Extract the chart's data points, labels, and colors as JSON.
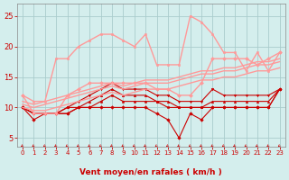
{
  "x": [
    0,
    1,
    2,
    3,
    4,
    5,
    6,
    7,
    8,
    9,
    10,
    11,
    12,
    13,
    14,
    15,
    16,
    17,
    18,
    19,
    20,
    21,
    22,
    23
  ],
  "series": [
    {
      "y": [
        10,
        8,
        9,
        9,
        9,
        10,
        10,
        10,
        10,
        10,
        10,
        10,
        9,
        8,
        5,
        9,
        8,
        10,
        10,
        10,
        10,
        10,
        10,
        13
      ],
      "color": "#cc0000",
      "marker": "D",
      "linewidth": 0.8,
      "markersize": 1.8,
      "linestyle": "-"
    },
    {
      "y": [
        10,
        9,
        9,
        9,
        9,
        10,
        10,
        11,
        12,
        11,
        11,
        11,
        11,
        10,
        10,
        10,
        10,
        10,
        10,
        10,
        10,
        10,
        10,
        13
      ],
      "color": "#cc0000",
      "marker": "s",
      "linewidth": 0.8,
      "markersize": 1.8,
      "linestyle": "-"
    },
    {
      "y": [
        10,
        9,
        9,
        9,
        10,
        10,
        11,
        12,
        13,
        12,
        12,
        12,
        11,
        11,
        10,
        10,
        10,
        11,
        11,
        11,
        11,
        11,
        11,
        13
      ],
      "color": "#cc0000",
      "marker": "^",
      "linewidth": 0.8,
      "markersize": 1.8,
      "linestyle": "-"
    },
    {
      "y": [
        10,
        9,
        9,
        9,
        10,
        11,
        12,
        13,
        14,
        13,
        13,
        13,
        12,
        12,
        11,
        11,
        11,
        13,
        12,
        12,
        12,
        12,
        12,
        13
      ],
      "color": "#cc0000",
      "marker": "v",
      "linewidth": 0.8,
      "markersize": 1.8,
      "linestyle": "-"
    },
    {
      "y": [
        10.0,
        9.5,
        9.5,
        10.0,
        10.5,
        11.0,
        11.5,
        12.0,
        12.5,
        12.0,
        12.5,
        13.0,
        13.0,
        13.0,
        13.5,
        14.0,
        14.5,
        14.5,
        15.0,
        15.0,
        15.5,
        16.0,
        16.0,
        16.5
      ],
      "color": "#ff9999",
      "marker": null,
      "linewidth": 1.0,
      "markersize": 0,
      "linestyle": "-"
    },
    {
      "y": [
        10.5,
        10.0,
        10.5,
        11.0,
        11.5,
        12.0,
        12.5,
        13.0,
        13.5,
        13.0,
        13.5,
        14.0,
        14.0,
        14.0,
        14.5,
        15.0,
        15.5,
        15.5,
        16.0,
        16.0,
        16.5,
        17.0,
        17.0,
        17.5
      ],
      "color": "#ff9999",
      "marker": null,
      "linewidth": 1.0,
      "markersize": 0,
      "linestyle": "-"
    },
    {
      "y": [
        11.0,
        10.5,
        11.0,
        11.5,
        12.0,
        12.5,
        13.0,
        13.5,
        14.0,
        13.5,
        14.0,
        14.5,
        14.5,
        14.5,
        15.0,
        15.5,
        16.0,
        16.0,
        16.5,
        16.5,
        17.0,
        17.5,
        17.5,
        18.0
      ],
      "color": "#ff9999",
      "marker": null,
      "linewidth": 1.0,
      "markersize": 0,
      "linestyle": "-"
    },
    {
      "y": [
        12,
        9,
        9,
        9,
        12,
        13,
        14,
        14,
        14,
        14,
        14,
        14,
        13,
        13,
        12,
        12,
        14,
        18,
        18,
        18,
        18,
        17,
        18,
        19
      ],
      "color": "#ff9999",
      "marker": "D",
      "linewidth": 1.0,
      "markersize": 2.0,
      "linestyle": "-"
    },
    {
      "y": [
        12,
        11,
        11,
        18,
        18,
        20,
        21,
        22,
        22,
        21,
        20,
        22,
        17,
        17,
        17,
        25,
        24,
        22,
        19,
        19,
        16,
        19,
        16,
        19
      ],
      "color": "#ff9999",
      "marker": "s",
      "linewidth": 1.0,
      "markersize": 2.0,
      "linestyle": "-"
    }
  ],
  "xlabel": "Vent moyen/en rafales ( km/h )",
  "xlim": [
    -0.5,
    23.5
  ],
  "ylim": [
    3.5,
    27
  ],
  "yticks": [
    5,
    10,
    15,
    20,
    25
  ],
  "xticks": [
    0,
    1,
    2,
    3,
    4,
    5,
    6,
    7,
    8,
    9,
    10,
    11,
    12,
    13,
    14,
    15,
    16,
    17,
    18,
    19,
    20,
    21,
    22,
    23
  ],
  "bg_color": "#d4eeed",
  "grid_color": "#aacccc",
  "tick_color": "#cc0000",
  "label_color": "#cc0000",
  "spine_color": "#888888"
}
